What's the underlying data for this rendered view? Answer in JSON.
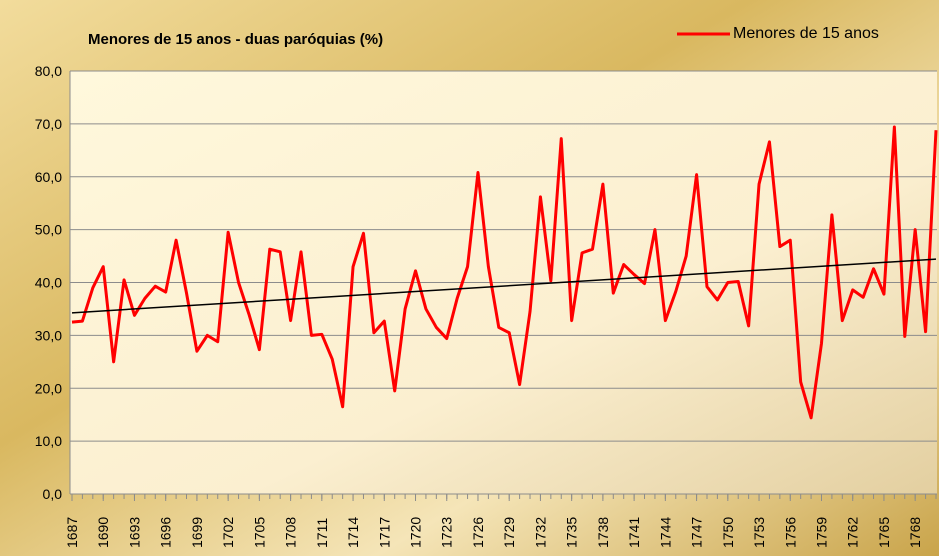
{
  "chart_data": {
    "type": "line",
    "title": "Menores de 15 anos - duas paróquias (%)",
    "x": [
      1687,
      1688,
      1689,
      1690,
      1691,
      1692,
      1693,
      1694,
      1695,
      1696,
      1697,
      1698,
      1699,
      1700,
      1701,
      1702,
      1703,
      1704,
      1705,
      1706,
      1707,
      1708,
      1709,
      1710,
      1711,
      1712,
      1713,
      1714,
      1715,
      1716,
      1717,
      1718,
      1719,
      1720,
      1721,
      1722,
      1723,
      1724,
      1725,
      1726,
      1727,
      1728,
      1729,
      1730,
      1731,
      1732,
      1733,
      1734,
      1735,
      1736,
      1737,
      1738,
      1739,
      1740,
      1741,
      1742,
      1743,
      1744,
      1745,
      1746,
      1747,
      1748,
      1749,
      1750,
      1751,
      1752,
      1753,
      1754,
      1755,
      1756,
      1757,
      1758,
      1759,
      1760,
      1761,
      1762,
      1763,
      1764,
      1765,
      1766,
      1767,
      1768,
      1769,
      1770
    ],
    "series": [
      {
        "name": "Menores de 15 anos",
        "color": "#ff0000",
        "values": [
          32.5,
          32.7,
          39,
          43,
          25,
          40.5,
          33.8,
          37,
          39.3,
          38.2,
          48,
          38,
          27,
          30,
          28.8,
          49.5,
          40,
          34,
          27.3,
          46.3,
          45.8,
          32.8,
          45.8,
          30,
          30.2,
          25.5,
          16.5,
          43,
          49.3,
          30.5,
          32.7,
          19.5,
          35,
          42.2,
          35,
          31.5,
          29.4,
          37,
          43,
          60.8,
          43,
          31.5,
          30.5,
          20.7,
          34.5,
          56.2,
          40.3,
          67.2,
          32.8,
          45.6,
          46.3,
          58.6,
          38,
          43.4,
          41.5,
          39.8,
          50,
          32.8,
          38.3,
          45,
          60.4,
          39.2,
          36.7,
          40,
          40.2,
          31.8,
          58.6,
          66.6,
          46.8,
          48,
          21.2,
          14.4,
          28.5,
          52.8,
          32.8,
          38.6,
          37.2,
          42.6,
          37.8,
          69.4,
          29.8,
          50,
          30.7,
          68.8
        ]
      }
    ],
    "trendline": true,
    "trendline_color": "#000000",
    "xlim": [
      1687,
      1770
    ],
    "xticks": [
      1687,
      1690,
      1693,
      1696,
      1699,
      1702,
      1705,
      1708,
      1711,
      1714,
      1717,
      1720,
      1723,
      1726,
      1729,
      1732,
      1735,
      1738,
      1741,
      1744,
      1747,
      1750,
      1753,
      1756,
      1759,
      1762,
      1765,
      1768
    ],
    "ylim": [
      0,
      80
    ],
    "yticks": [
      {
        "value": 0,
        "label": "0,0"
      },
      {
        "value": 10,
        "label": "10,0"
      },
      {
        "value": 20,
        "label": "20,0"
      },
      {
        "value": 30,
        "label": "30,0"
      },
      {
        "value": 40,
        "label": "40,0"
      },
      {
        "value": 50,
        "label": "50,0"
      },
      {
        "value": 60,
        "label": "60,0"
      },
      {
        "value": 70,
        "label": "70,0"
      },
      {
        "value": 80,
        "label": "80,0"
      }
    ],
    "grid": true,
    "legend": "top-right"
  }
}
